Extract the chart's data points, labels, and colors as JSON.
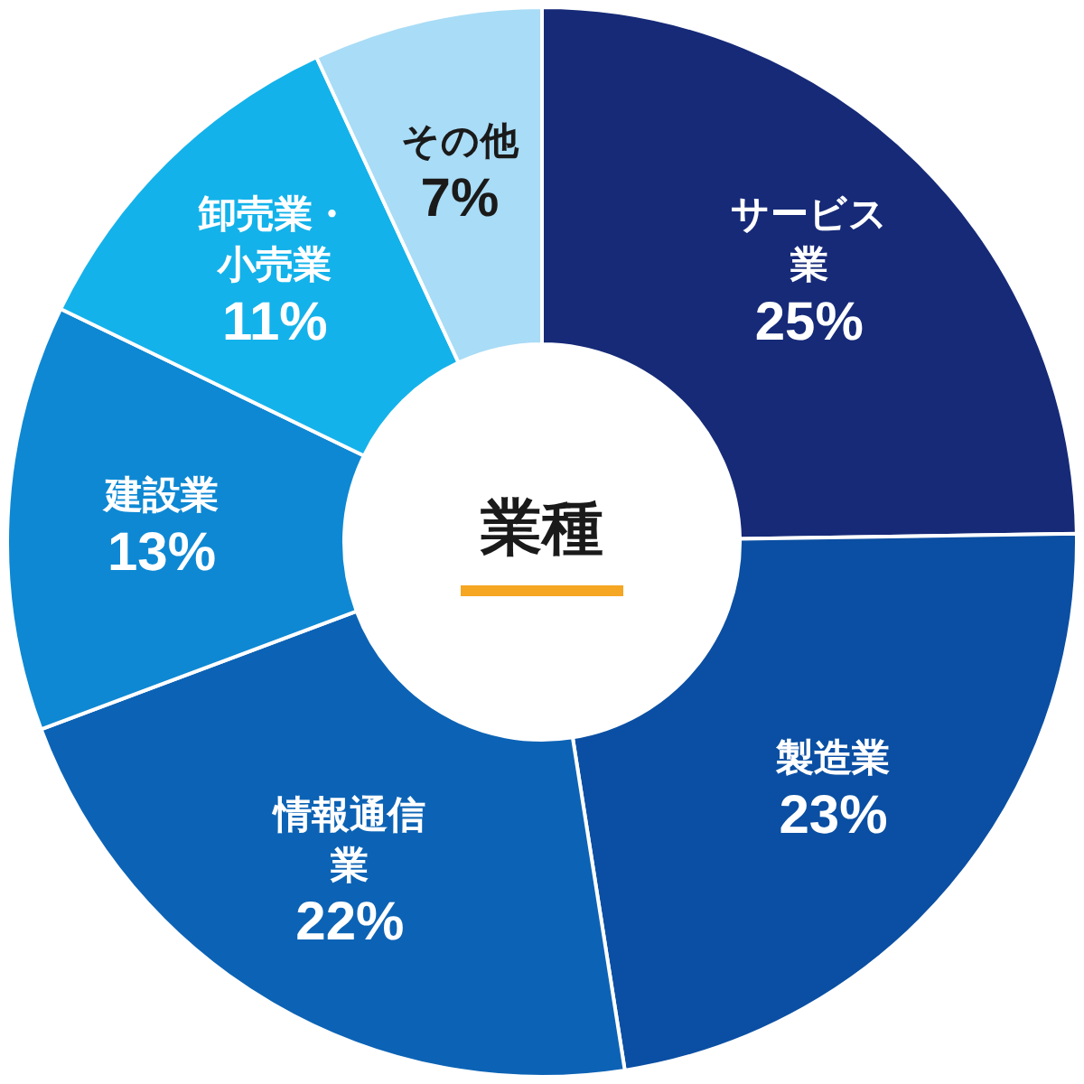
{
  "chart_data": {
    "type": "donut",
    "title": "業種",
    "categories": [
      "サービス業",
      "製造業",
      "情報通信業",
      "建設業",
      "卸売業・小売業",
      "その他"
    ],
    "values": [
      25,
      23,
      22,
      13,
      11,
      7
    ],
    "value_labels": [
      "25%",
      "23%",
      "22%",
      "13%",
      "11%",
      "7%"
    ],
    "colors": [
      "#162a78",
      "#0a4fa3",
      "#0c63b5",
      "#0e88d3",
      "#14b2ea",
      "#a9dcf6"
    ],
    "legend": false
  }
}
